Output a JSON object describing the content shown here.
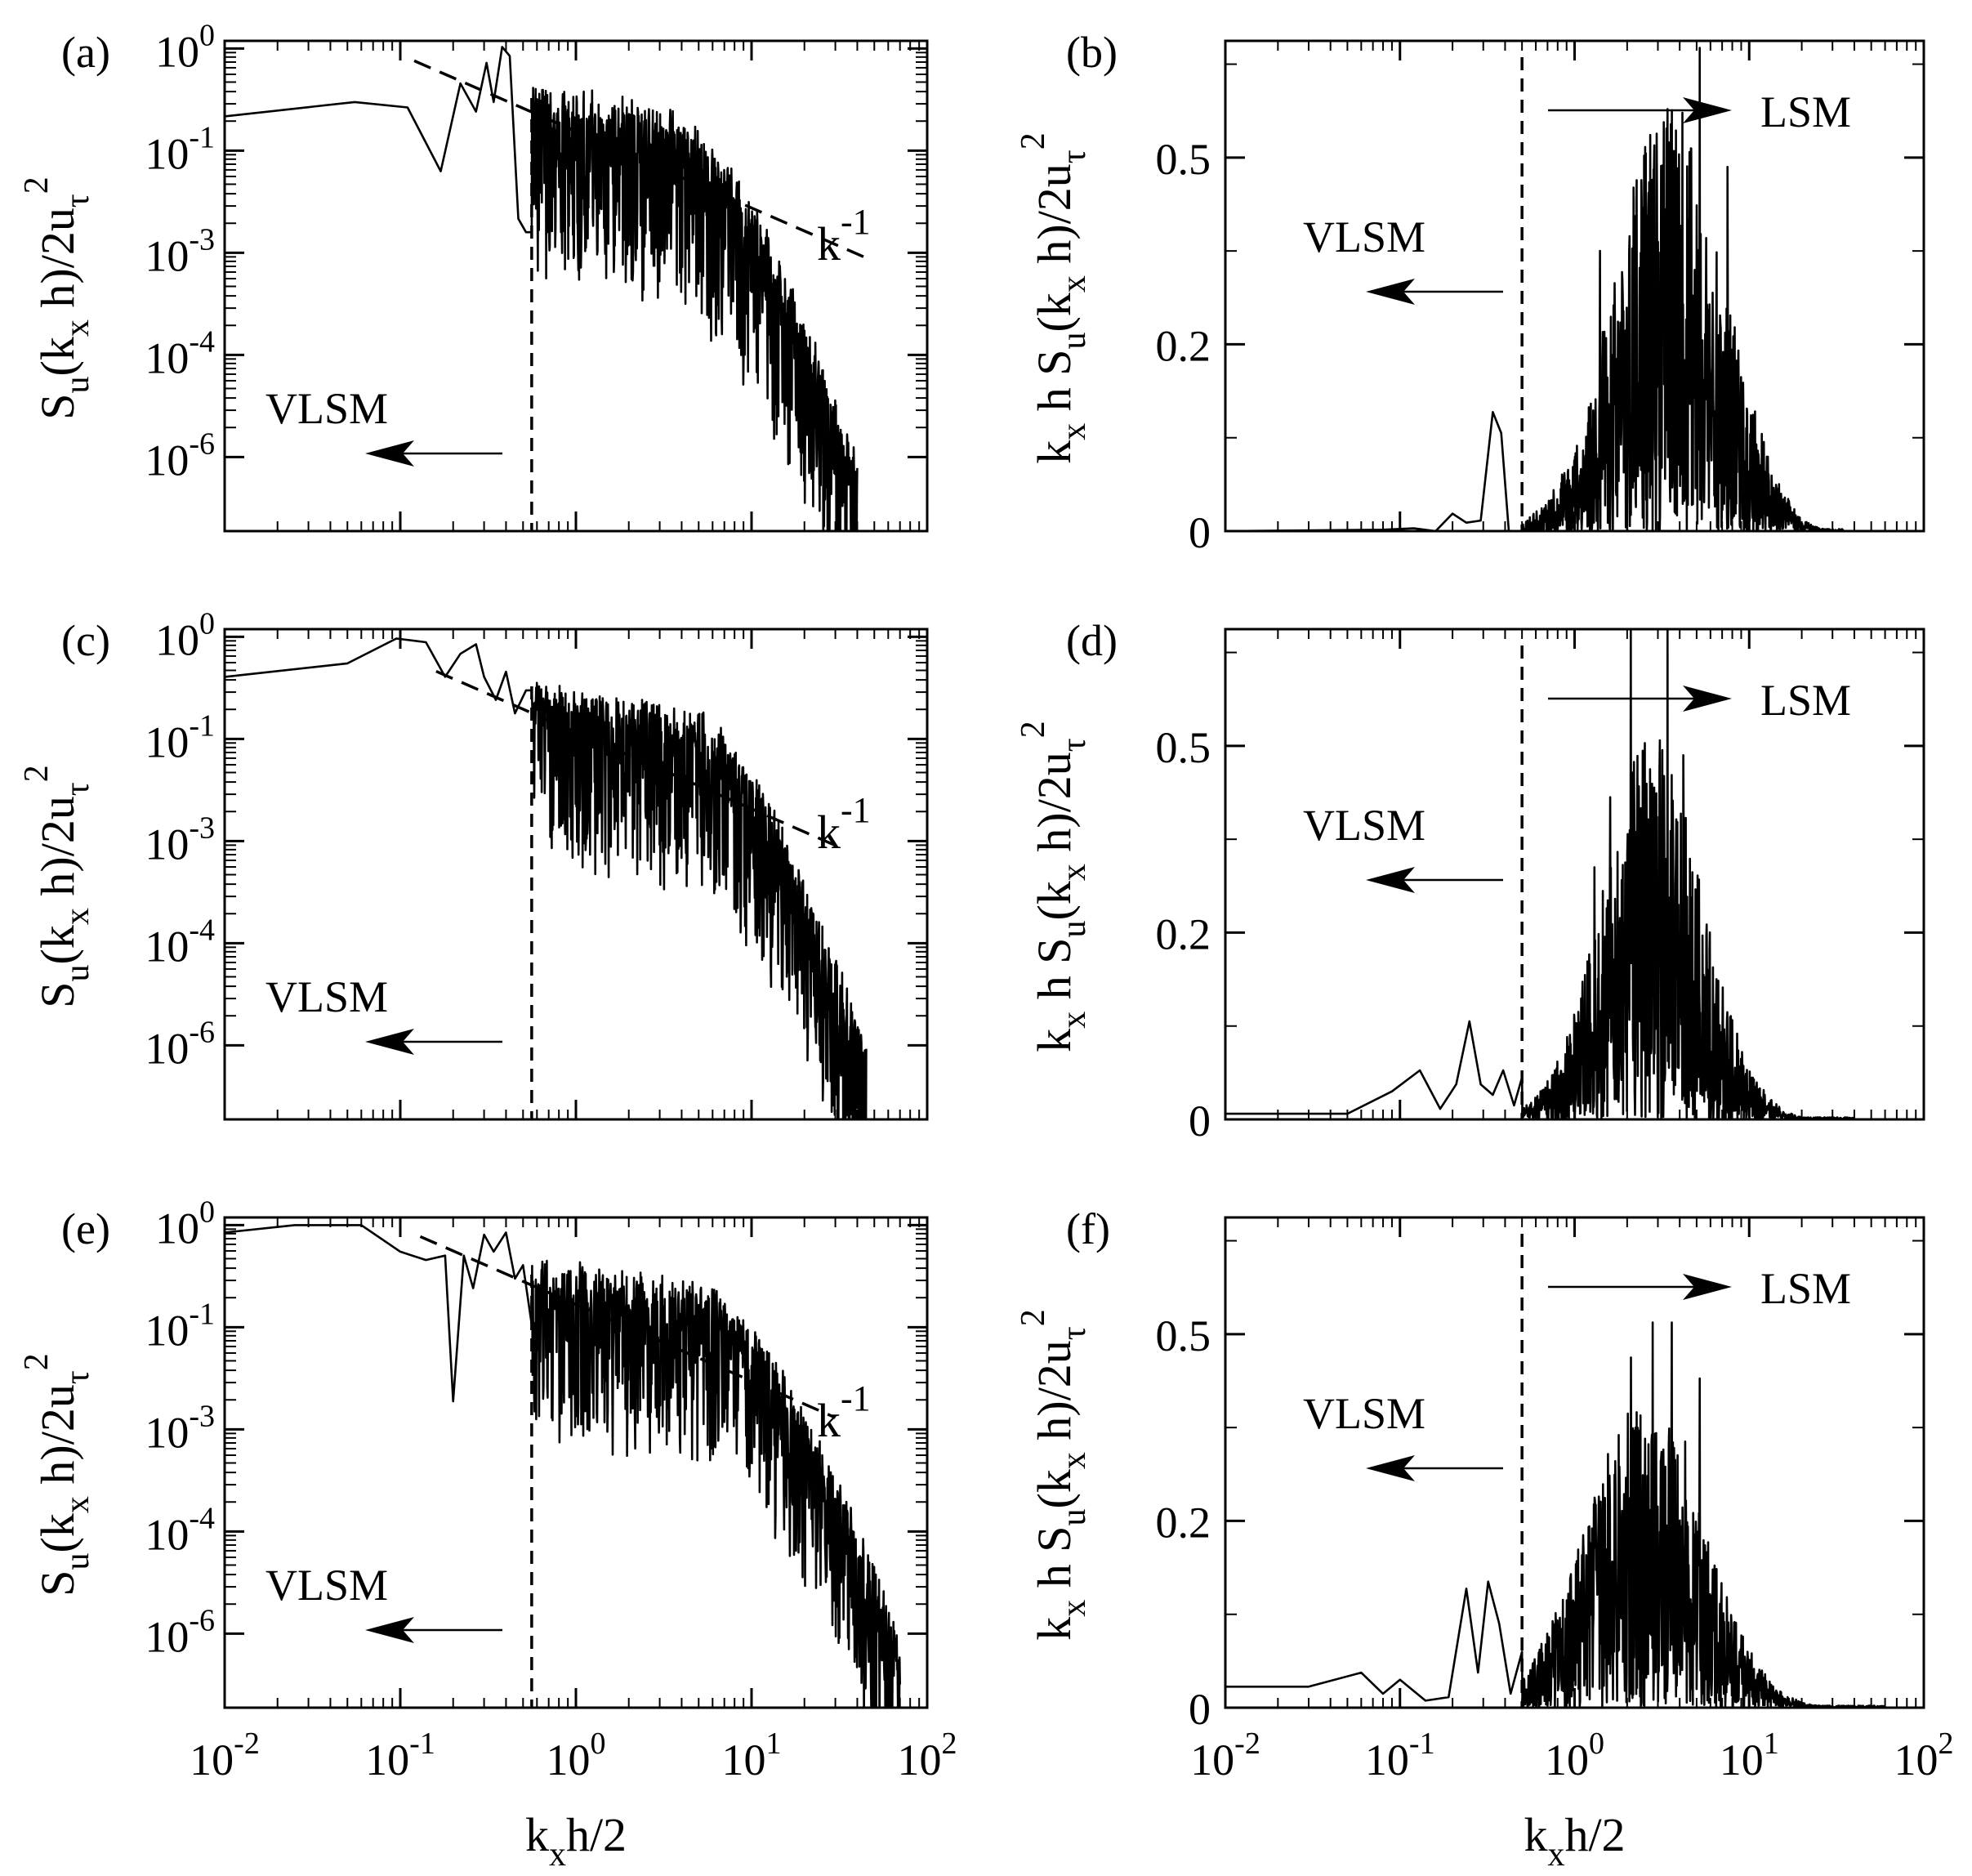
{
  "figure": {
    "x_axis_label_main": "k",
    "x_axis_label_sub": "x",
    "x_axis_label_rest": "h/2",
    "x_ticks": [
      {
        "base": "10",
        "exp": "-2",
        "value": -2
      },
      {
        "base": "10",
        "exp": "-1",
        "value": -1
      },
      {
        "base": "10",
        "exp": "0",
        "value": 0
      },
      {
        "base": "10",
        "exp": "1",
        "value": 1
      },
      {
        "base": "10",
        "exp": "2",
        "value": 2
      }
    ]
  },
  "chart_data": [
    {
      "panel": "(a)",
      "type": "line",
      "scale": "log-log",
      "ylabel": "S_u(k_x h)/2u_τ^2",
      "xlim": [
        0.01,
        100
      ],
      "ylim_log10": [
        -6.3,
        0.1
      ],
      "y_ticks": [
        "10^0",
        "10^-1",
        "10^-3",
        "10^-4",
        "10^-6"
      ],
      "y_tick_labels": [
        {
          "base": "10",
          "exp": "0",
          "pos": 0
        },
        {
          "base": "10",
          "exp": "-1",
          "pos": -1.333
        },
        {
          "base": "10",
          "exp": "-3",
          "pos": -2.667
        },
        {
          "base": "10",
          "exp": "-4",
          "pos": -4
        },
        {
          "base": "10",
          "exp": "-6",
          "pos": -5.333
        }
      ],
      "slope_label": "k",
      "slope_exp": "-1",
      "vlsm_label": "VLSM",
      "cutoff_x": 0.56,
      "reference_line": {
        "slope": -1,
        "x": [
          0.12,
          45
        ],
        "y_log10_start": -0.16
      },
      "series_shape": {
        "low": [
          [
            0.01,
            0.13
          ],
          [
            0.055,
            0.2
          ],
          [
            0.11,
            0.17
          ],
          [
            0.17,
            0.025
          ],
          [
            0.22,
            0.35
          ],
          [
            0.27,
            0.15
          ],
          [
            0.31,
            0.65
          ],
          [
            0.34,
            0.2
          ],
          [
            0.38,
            1.05
          ],
          [
            0.42,
            0.8
          ],
          [
            0.47,
            0.006
          ],
          [
            0.52,
            0.004
          ],
          [
            0.56,
            0.004
          ]
        ],
        "flat_to": 3.2,
        "flat_level": 0.15,
        "decay_end": 40,
        "end_level": 1e-06,
        "noise": 1.6,
        "seed": 11
      }
    },
    {
      "panel": "(b)",
      "type": "line",
      "scale": "semilog-x",
      "ylabel": "k_x h S_u(k_x h)/2u_τ^2",
      "xlim": [
        0.01,
        100
      ],
      "ylim": [
        0,
        0.7
      ],
      "y_ticks": [
        0,
        0.2,
        0.5
      ],
      "y_tick_labels": [
        {
          "text": "0",
          "pos": 0
        },
        {
          "text": "0.2",
          "pos": 0.2667
        },
        {
          "text": "0.5",
          "pos": 0.5333
        }
      ],
      "lsm_label": "LSM",
      "vlsm_label": "VLSM",
      "cutoff_x": 0.5,
      "series_shape": {
        "low": [
          [
            0.01,
            0
          ],
          [
            0.08,
            0.002
          ],
          [
            0.12,
            0.004
          ],
          [
            0.16,
            0.0
          ],
          [
            0.2,
            0.025
          ],
          [
            0.24,
            0.012
          ],
          [
            0.29,
            0.015
          ],
          [
            0.34,
            0.17
          ],
          [
            0.38,
            0.14
          ],
          [
            0.42,
            0.0
          ],
          [
            0.5,
            0.0
          ]
        ],
        "peak_x": 3.5,
        "peak_level": 0.27,
        "width": 1.9,
        "spike_amp": 2.3,
        "end_x": 35,
        "seed": 23,
        "tall": [
          [
            1.4,
            0.4
          ],
          [
            2.2,
            0.45
          ],
          [
            3.2,
            0.46
          ],
          [
            5.2,
            0.69
          ],
          [
            7.5,
            0.52
          ],
          [
            4.1,
            0.42
          ]
        ]
      }
    },
    {
      "panel": "(c)",
      "type": "line",
      "scale": "log-log",
      "ylabel": "S_u(k_x h)/2u_τ^2",
      "xlim": [
        0.01,
        100
      ],
      "ylim_log10": [
        -6.3,
        0.1
      ],
      "y_ticks": [
        "10^0",
        "10^-1",
        "10^-3",
        "10^-4",
        "10^-6"
      ],
      "y_tick_labels": [
        {
          "base": "10",
          "exp": "0",
          "pos": 0
        },
        {
          "base": "10",
          "exp": "-1",
          "pos": -1.333
        },
        {
          "base": "10",
          "exp": "-3",
          "pos": -2.667
        },
        {
          "base": "10",
          "exp": "-4",
          "pos": -4
        },
        {
          "base": "10",
          "exp": "-6",
          "pos": -5.333
        }
      ],
      "slope_label": "k",
      "slope_exp": "-1",
      "vlsm_label": "VLSM",
      "cutoff_x": 0.56,
      "reference_line": {
        "slope": -1,
        "x": [
          0.16,
          30
        ],
        "y_log10_start": -0.45
      },
      "series_shape": {
        "low": [
          [
            0.01,
            0.3
          ],
          [
            0.05,
            0.45
          ],
          [
            0.095,
            0.95
          ],
          [
            0.14,
            0.85
          ],
          [
            0.18,
            0.3
          ],
          [
            0.22,
            0.6
          ],
          [
            0.27,
            0.8
          ],
          [
            0.3,
            0.3
          ],
          [
            0.35,
            0.15
          ],
          [
            0.4,
            0.35
          ],
          [
            0.45,
            0.1
          ],
          [
            0.52,
            0.2
          ],
          [
            0.56,
            0.2
          ]
        ],
        "flat_to": 4.5,
        "flat_level": 0.1,
        "decay_end": 45,
        "end_level": 1e-06,
        "noise": 1.5,
        "seed": 37
      }
    },
    {
      "panel": "(d)",
      "type": "line",
      "scale": "semilog-x",
      "ylabel": "k_x h S_u(k_x h)/2u_τ^2",
      "xlim": [
        0.01,
        100
      ],
      "ylim": [
        0,
        0.7
      ],
      "y_ticks": [
        0,
        0.2,
        0.5
      ],
      "y_tick_labels": [
        {
          "text": "0",
          "pos": 0
        },
        {
          "text": "0.2",
          "pos": 0.2667
        },
        {
          "text": "0.5",
          "pos": 0.5333
        }
      ],
      "lsm_label": "LSM",
      "vlsm_label": "VLSM",
      "cutoff_x": 0.5,
      "series_shape": {
        "low": [
          [
            0.01,
            0.008
          ],
          [
            0.05,
            0.008
          ],
          [
            0.09,
            0.04
          ],
          [
            0.13,
            0.07
          ],
          [
            0.17,
            0.015
          ],
          [
            0.21,
            0.05
          ],
          [
            0.25,
            0.14
          ],
          [
            0.29,
            0.05
          ],
          [
            0.34,
            0.035
          ],
          [
            0.39,
            0.07
          ],
          [
            0.45,
            0.02
          ],
          [
            0.5,
            0.06
          ]
        ],
        "peak_x": 2.8,
        "peak_level": 0.25,
        "width": 1.8,
        "spike_amp": 2.2,
        "end_x": 40,
        "seed": 51,
        "tall": [
          [
            1.6,
            0.46
          ],
          [
            2.1,
            0.72
          ],
          [
            3.4,
            0.72
          ],
          [
            4.2,
            0.52
          ],
          [
            1.3,
            0.36
          ],
          [
            2.7,
            0.5
          ]
        ]
      }
    },
    {
      "panel": "(e)",
      "type": "line",
      "scale": "log-log",
      "ylabel": "S_u(k_x h)/2u_τ^2",
      "xlim": [
        0.01,
        100
      ],
      "ylim_log10": [
        -6.3,
        0.1
      ],
      "y_ticks": [
        "10^0",
        "10^-1",
        "10^-3",
        "10^-4",
        "10^-6"
      ],
      "y_tick_labels": [
        {
          "base": "10",
          "exp": "0",
          "pos": 0
        },
        {
          "base": "10",
          "exp": "-1",
          "pos": -1.333
        },
        {
          "base": "10",
          "exp": "-3",
          "pos": -2.667
        },
        {
          "base": "10",
          "exp": "-4",
          "pos": -4
        },
        {
          "base": "10",
          "exp": "-6",
          "pos": -5.333
        }
      ],
      "slope_label": "k",
      "slope_exp": "-1",
      "vlsm_label": "VLSM",
      "cutoff_x": 0.56,
      "reference_line": {
        "slope": -1,
        "x": [
          0.13,
          30
        ],
        "y_log10_start": -0.15
      },
      "series_shape": {
        "low": [
          [
            0.01,
            0.8
          ],
          [
            0.025,
            1.0
          ],
          [
            0.06,
            1.0
          ],
          [
            0.1,
            0.45
          ],
          [
            0.14,
            0.35
          ],
          [
            0.18,
            0.4
          ],
          [
            0.2,
            0.005
          ],
          [
            0.23,
            0.4
          ],
          [
            0.26,
            0.15
          ],
          [
            0.3,
            0.75
          ],
          [
            0.34,
            0.45
          ],
          [
            0.4,
            0.8
          ],
          [
            0.45,
            0.2
          ],
          [
            0.5,
            0.3
          ],
          [
            0.56,
            0.05
          ]
        ],
        "flat_to": 5.0,
        "flat_level": 0.15,
        "decay_end": 70,
        "end_level": 1e-06,
        "noise": 1.5,
        "seed": 73
      }
    },
    {
      "panel": "(f)",
      "type": "line",
      "scale": "semilog-x",
      "ylabel": "k_x h S_u(k_x h)/2u_τ^2",
      "xlim": [
        0.01,
        100
      ],
      "ylim": [
        0,
        0.7
      ],
      "y_ticks": [
        0,
        0.2,
        0.5
      ],
      "y_tick_labels": [
        {
          "text": "0",
          "pos": 0
        },
        {
          "text": "0.2",
          "pos": 0.2667
        },
        {
          "text": "0.5",
          "pos": 0.5333
        }
      ],
      "lsm_label": "LSM",
      "vlsm_label": "VLSM",
      "cutoff_x": 0.5,
      "series_shape": {
        "low": [
          [
            0.01,
            0.03
          ],
          [
            0.03,
            0.03
          ],
          [
            0.06,
            0.05
          ],
          [
            0.08,
            0.02
          ],
          [
            0.1,
            0.04
          ],
          [
            0.14,
            0.01
          ],
          [
            0.19,
            0.015
          ],
          [
            0.24,
            0.17
          ],
          [
            0.28,
            0.05
          ],
          [
            0.32,
            0.18
          ],
          [
            0.37,
            0.12
          ],
          [
            0.43,
            0.02
          ],
          [
            0.5,
            0.08
          ]
        ],
        "peak_x": 2.5,
        "peak_level": 0.2,
        "width": 2.0,
        "spike_amp": 2.2,
        "end_x": 60,
        "seed": 97,
        "tall": [
          [
            1.3,
            0.3
          ],
          [
            2.1,
            0.5
          ],
          [
            2.8,
            0.55
          ],
          [
            3.6,
            0.55
          ],
          [
            5.2,
            0.47
          ],
          [
            4.3,
            0.38
          ]
        ]
      }
    }
  ]
}
